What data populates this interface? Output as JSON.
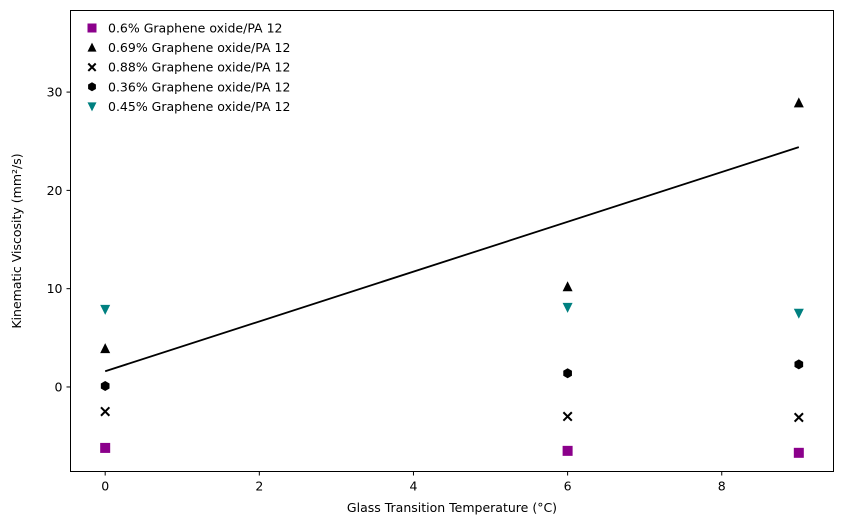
{
  "chart_data": {
    "type": "scatter",
    "title": "",
    "xlabel": "Glass Transition Temperature (°C)",
    "ylabel": "Kinematic Viscosity (mm²/s)",
    "xlim": [
      -0.45,
      9.45
    ],
    "ylim": [
      -8.6,
      38.3
    ],
    "xticks": [
      0,
      2,
      4,
      6,
      8
    ],
    "yticks": [
      0,
      10,
      20,
      30
    ],
    "grid": false,
    "legend_position": "top-left",
    "series": [
      {
        "name": "0.6% Graphene oxide/PA 12",
        "marker": "square",
        "color": "#8b008b",
        "x": [
          0,
          6,
          9
        ],
        "y": [
          -6.2,
          -6.5,
          -6.7
        ]
      },
      {
        "name": "0.69% Graphene oxide/PA 12",
        "marker": "triangle-up",
        "color": "#000000",
        "x": [
          0,
          6,
          9
        ],
        "y": [
          3.9,
          10.2,
          28.9
        ]
      },
      {
        "name": "0.88% Graphene oxide/PA 12",
        "marker": "x",
        "color": "#000000",
        "x": [
          0,
          6,
          9
        ],
        "y": [
          -2.5,
          -3.0,
          -3.1
        ]
      },
      {
        "name": "0.36% Graphene oxide/PA 12",
        "marker": "hexagon",
        "color": "#000000",
        "x": [
          0,
          6,
          9
        ],
        "y": [
          0.1,
          1.4,
          2.3
        ]
      },
      {
        "name": "0.45% Graphene oxide/PA 12",
        "marker": "triangle-down",
        "color": "#008080",
        "x": [
          0,
          6,
          9
        ],
        "y": [
          7.9,
          8.1,
          7.5
        ]
      }
    ],
    "trend_line": {
      "color": "#000000",
      "x": [
        0,
        9
      ],
      "y": [
        1.6,
        24.4
      ]
    }
  }
}
